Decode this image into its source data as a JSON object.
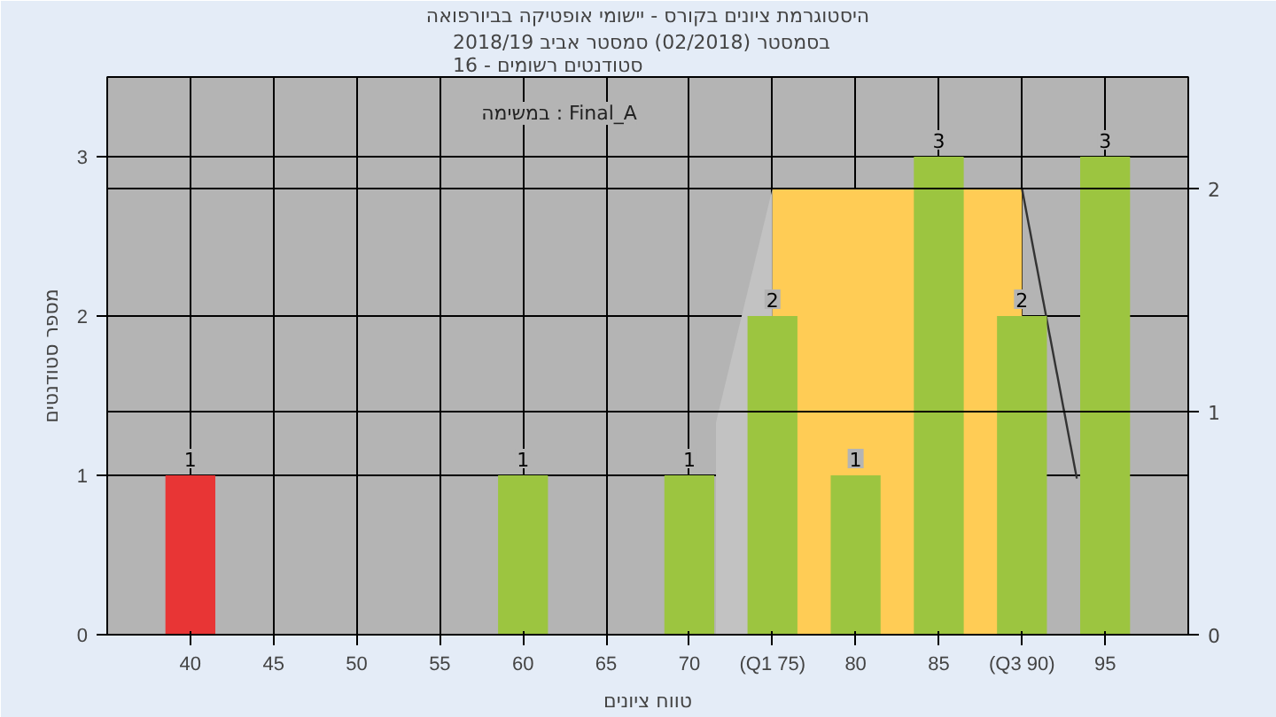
{
  "chart_data": {
    "type": "bar",
    "title": "היסטוגרמת ציונים בקורס - יישומי אופטיקה בביורפואה",
    "subtitle": "בסמסטר  (02/2018)  סמסטר אביב 2018/19\nסטודנטים רשומים - 16",
    "xlabel": "טווח ציונים",
    "ylabel": "מספר סטודנטים",
    "annotations": [
      "במשימה : Final_A"
    ],
    "xlim": [
      35,
      100
    ],
    "xticks": [
      40,
      45,
      50,
      55,
      60,
      65,
      70,
      {
        "value": 75,
        "label": "(Q1 75)"
      },
      80,
      85,
      {
        "value": 90,
        "label": "(Q3 90)"
      },
      95
    ],
    "ylim": [
      0,
      3.5
    ],
    "yticks": [
      0,
      1,
      2,
      3
    ],
    "y2lim": [
      0,
      2.5
    ],
    "y2ticks": [
      0,
      1,
      2
    ],
    "grid": true,
    "series": [
      {
        "type": "area",
        "axis": "y2",
        "color": "#c2c2c2",
        "x": [
          71.6,
          75
        ],
        "values": [
          0.95,
          2
        ]
      },
      {
        "type": "area",
        "axis": "y2",
        "color": "#ffcc55",
        "x": [
          75,
          90
        ],
        "values": [
          2,
          2
        ]
      },
      {
        "type": "line",
        "axis": "y2",
        "color": "#333333",
        "x": [
          90,
          93.3
        ],
        "values": [
          2,
          0.7
        ]
      },
      {
        "value_labels": [
          "1",
          "1",
          "1",
          "2",
          "1",
          "3",
          "2",
          "3"
        ],
        "x": [
          40,
          60,
          70,
          75,
          80,
          85,
          90,
          95
        ],
        "values": [
          1,
          1,
          1,
          2,
          1,
          3,
          2,
          3
        ],
        "colors": [
          "#e83535",
          "#9cc540",
          "#9cc540",
          "#9cc540",
          "#9cc540",
          "#9cc540",
          "#9cc540",
          "#9cc540"
        ]
      }
    ]
  }
}
